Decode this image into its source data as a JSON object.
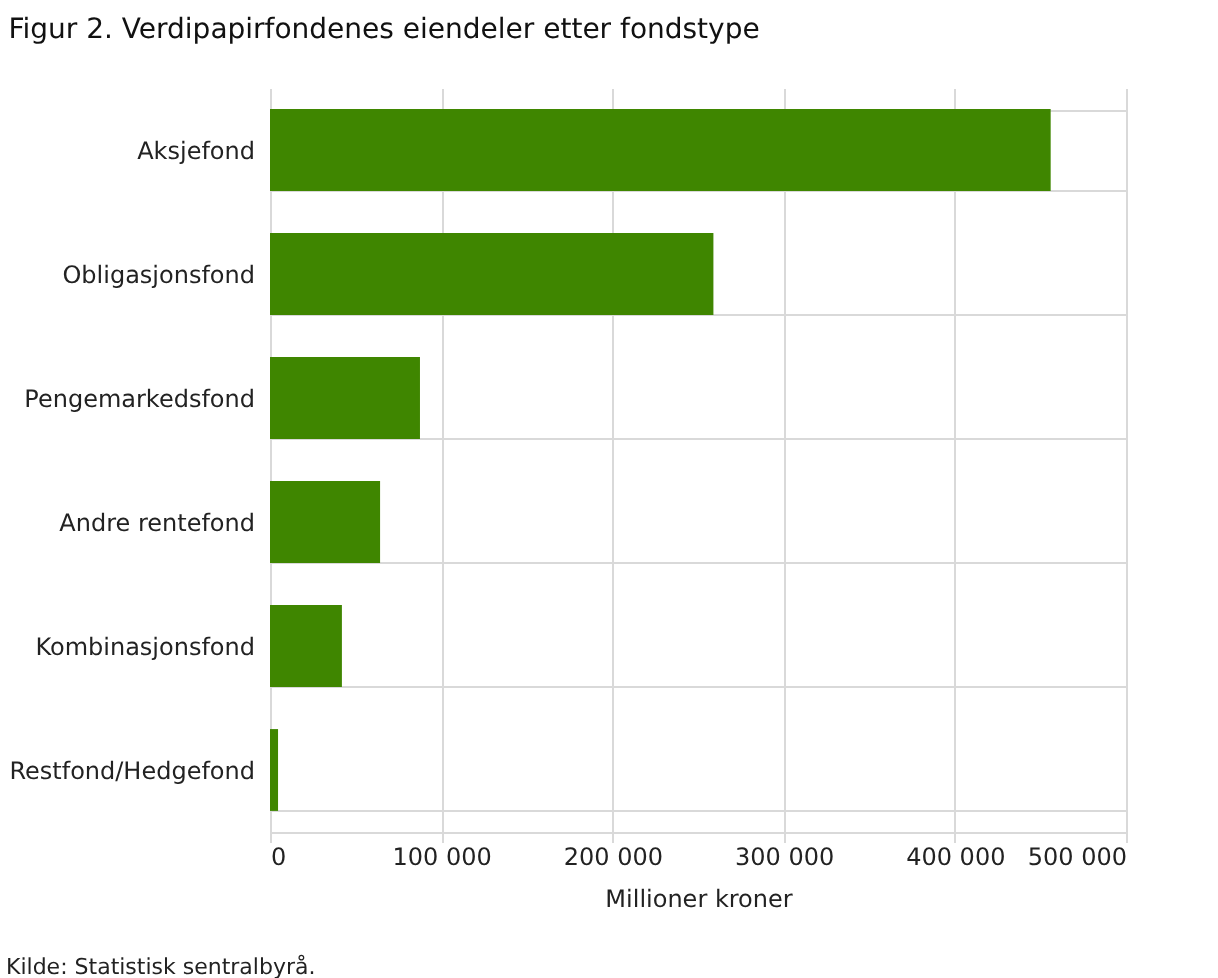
{
  "chart_data": {
    "type": "bar",
    "orientation": "horizontal",
    "title": "Figur 2. Verdipapirfondenes eiendeler etter fondstype",
    "xlabel": "Millioner kroner",
    "categories": [
      "Aksjefond",
      "Obligasjonsfond",
      "Pengemarkedsfond",
      "Andre rentefond",
      "Kombinasjonsfond",
      "Restfond/Hedgefond"
    ],
    "values": [
      456000,
      259000,
      87600,
      64300,
      42000,
      4700
    ],
    "color": "#3f8600",
    "xlim": [
      0,
      500000
    ],
    "xticks": [
      0,
      {
        "value": 100000,
        "label": "100 000"
      },
      {
        "value": 200000,
        "label": "200 000"
      },
      {
        "value": 300000,
        "label": "300 000"
      },
      {
        "value": 400000,
        "label": "400 000"
      },
      {
        "value": 500000,
        "label": "500 000"
      }
    ],
    "grid": true,
    "annotations": [
      "Kilde: Statistisk sentralbyrå."
    ]
  }
}
